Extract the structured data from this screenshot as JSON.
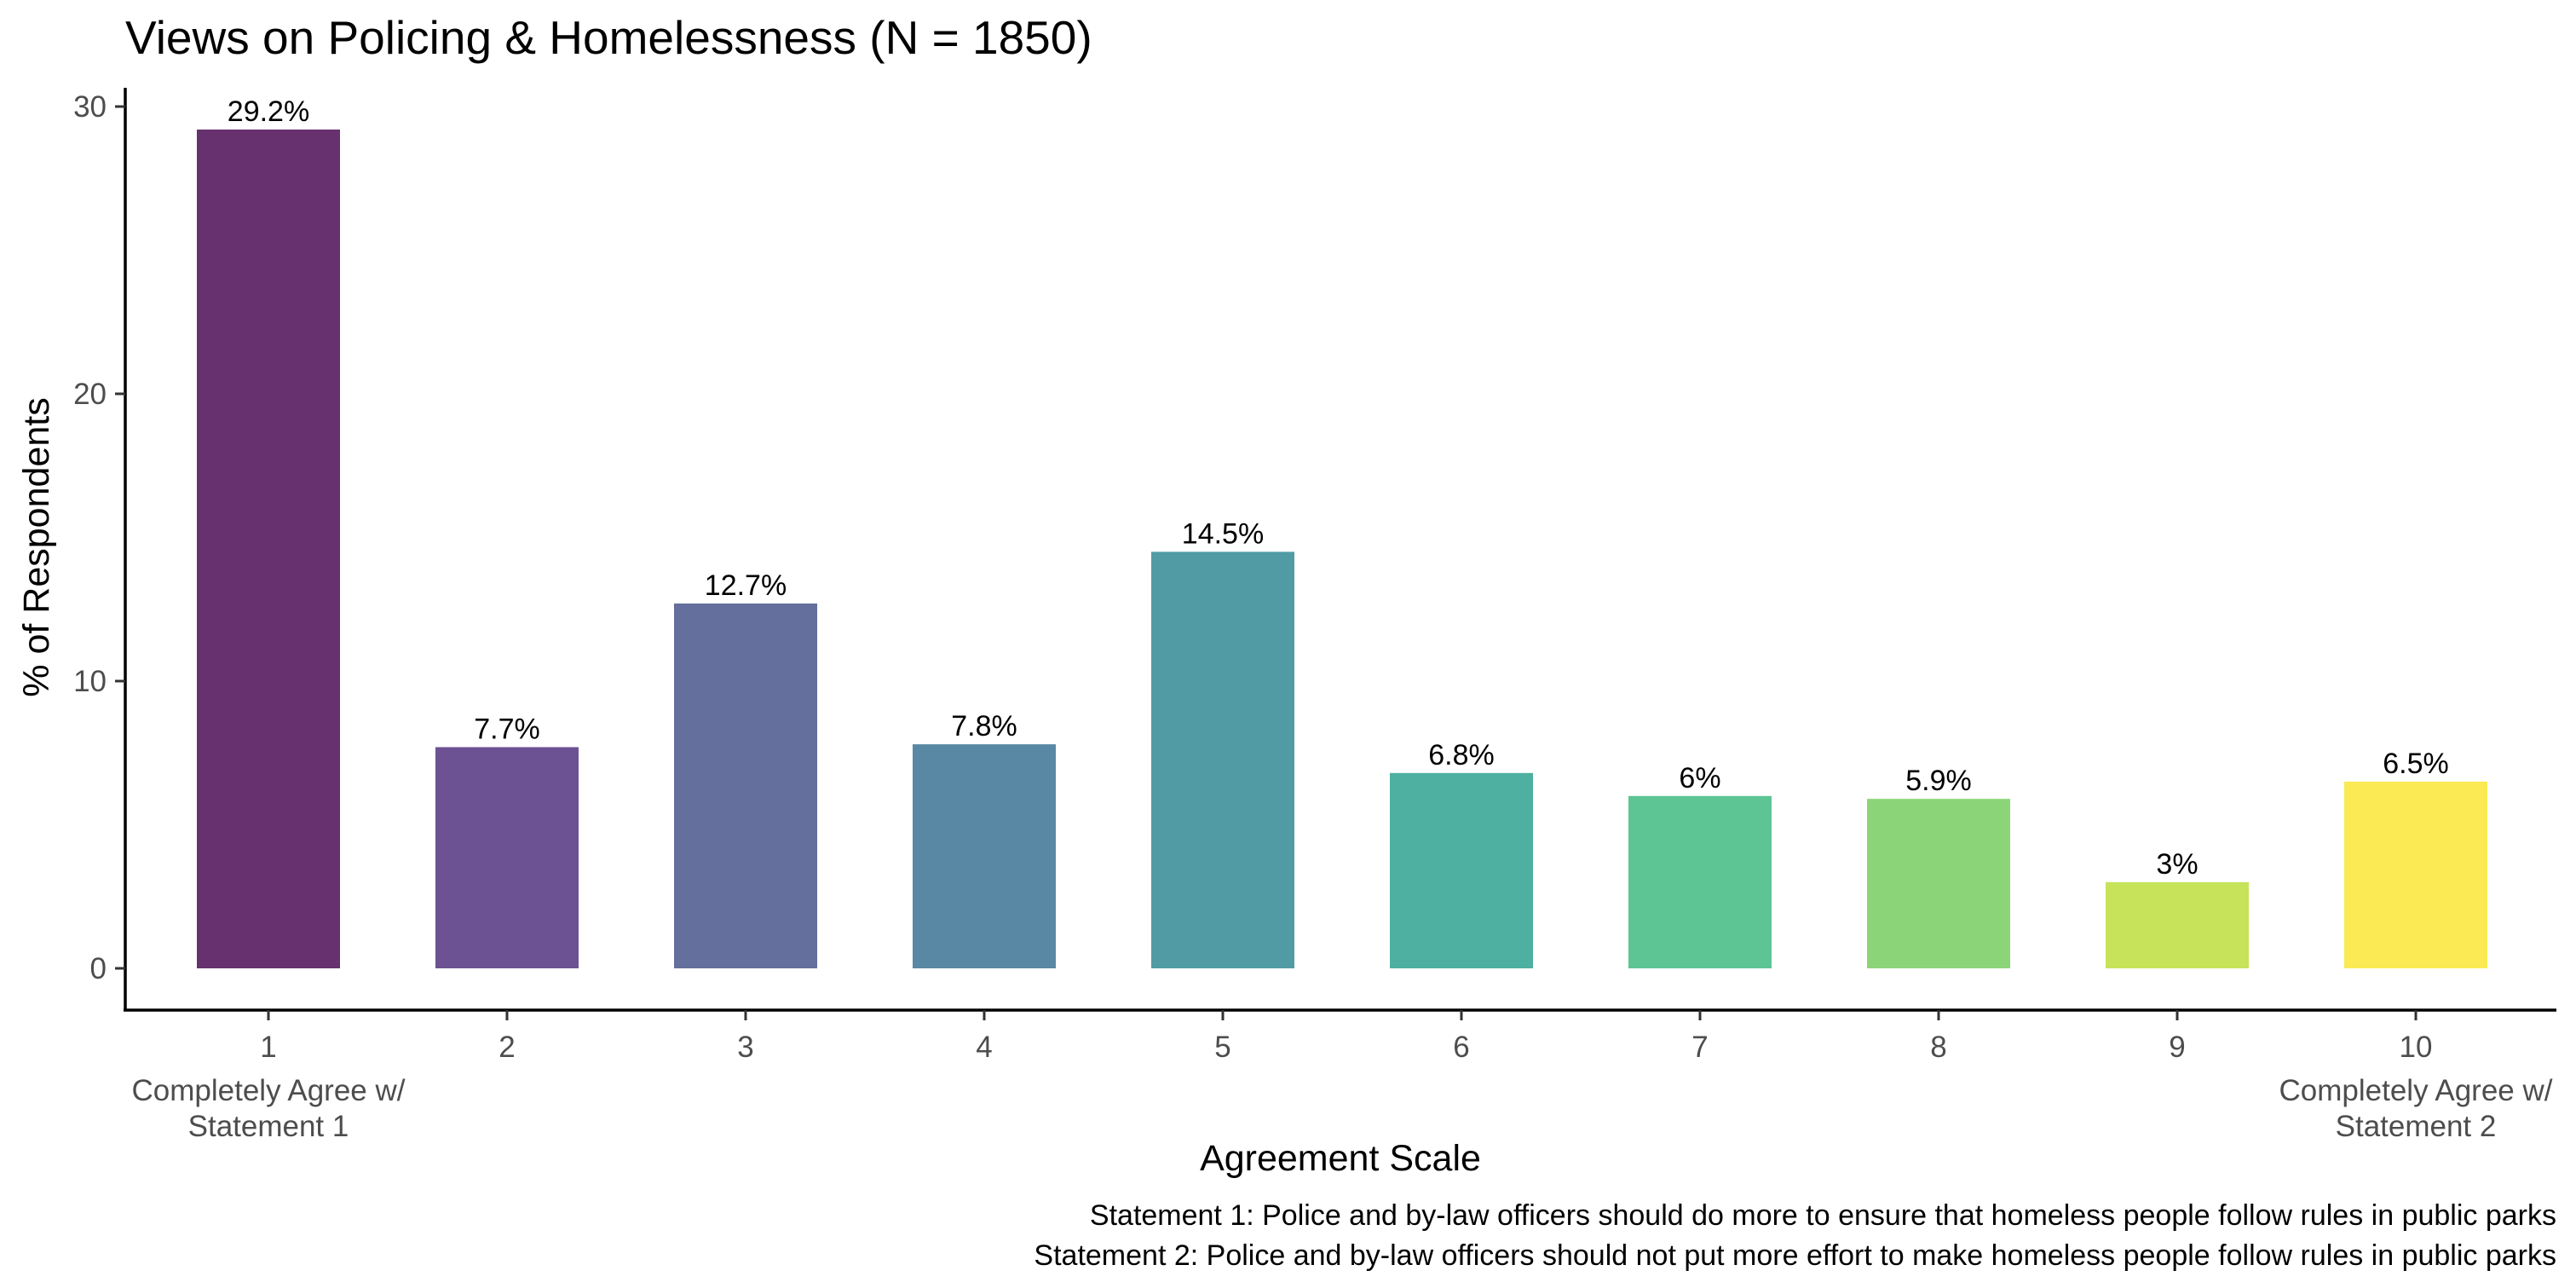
{
  "chart_data": {
    "type": "bar",
    "title": "Views on Policing & Homelessness (N = 1850)",
    "xlabel": "Agreement Scale",
    "ylabel": "% of Respondents",
    "categories": [
      "1",
      "2",
      "3",
      "4",
      "5",
      "6",
      "7",
      "8",
      "9",
      "10"
    ],
    "category_sublabels": [
      [
        "Completely Agree w/",
        "Statement 1"
      ],
      [],
      [],
      [],
      [],
      [],
      [],
      [],
      [],
      [
        "Completely Agree w/",
        "Statement 2"
      ]
    ],
    "values": [
      29.2,
      7.7,
      12.7,
      7.8,
      14.5,
      6.8,
      6.0,
      5.9,
      3.0,
      6.5
    ],
    "value_labels": [
      "29.2%",
      "7.7%",
      "12.7%",
      "7.8%",
      "14.5%",
      "6.8%",
      "6%",
      "5.9%",
      "3%",
      "6.5%"
    ],
    "colors": [
      "#67306F",
      "#6D5293",
      "#646F9D",
      "#5888A4",
      "#519CA4",
      "#4DB0A0",
      "#5DC593",
      "#8BD578",
      "#C6E35A",
      "#FBEA53"
    ],
    "ylim": [
      0,
      30
    ],
    "yticks": [
      0,
      10,
      20,
      30
    ],
    "grid": false,
    "legend": "none",
    "caption": [
      "Statement 1: Police and by-law officers should do more to ensure that homeless people follow rules in public parks",
      "Statement 2: Police and by-law officers should not put more effort to make homeless people follow rules in public parks"
    ]
  }
}
